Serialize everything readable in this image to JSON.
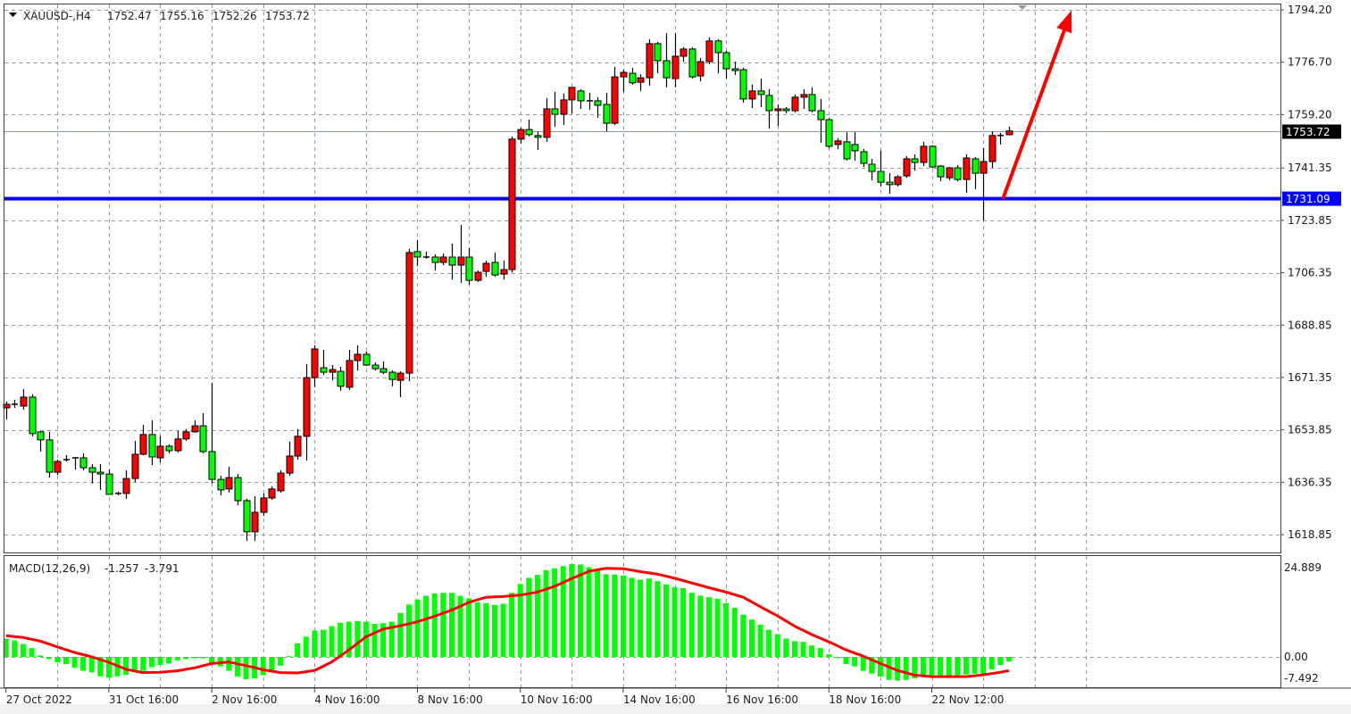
{
  "header": {
    "symbol": "XAUUSD-,H4",
    "open": "1752.47",
    "high": "1755.16",
    "low": "1752.26",
    "close": "1753.72"
  },
  "macd_header": {
    "label": "MACD(12,26,9)",
    "main": "-1.257",
    "signal": "-3.791"
  },
  "colors": {
    "bull_candle": "#ff0000",
    "bear_candle": "#00ff00",
    "level_line": "#0000ff",
    "arrow": "#ff0000",
    "macd_histogram": "#00ff00",
    "macd_signal": "#ff0000",
    "grid": "#8d99aa"
  },
  "chart_data": [
    {
      "type": "candlestick",
      "ylim": [
        1618.85,
        1794.2
      ],
      "grid": true,
      "price_ticks": [
        "1794.20",
        "1776.70",
        "1759.20",
        "1741.35",
        "1723.85",
        "1706.35",
        "1688.85",
        "1671.35",
        "1653.85",
        "1636.35",
        "1618.85"
      ],
      "current_price": "1753.72",
      "horizontal_level": "1731.09",
      "time_labels": [
        {
          "label": "27 Oct 2022",
          "bar": 1
        },
        {
          "label": "31 Oct 16:00",
          "bar": 13
        },
        {
          "label": "2 Nov 16:00",
          "bar": 25
        },
        {
          "label": "4 Nov 16:00",
          "bar": 37
        },
        {
          "label": "8 Nov 16:00",
          "bar": 49
        },
        {
          "label": "10 Nov 16:00",
          "bar": 61
        },
        {
          "label": "14 Nov 16:00",
          "bar": 73
        },
        {
          "label": "16 Nov 16:00",
          "bar": 85
        },
        {
          "label": "18 Nov 16:00",
          "bar": 97
        },
        {
          "label": "22 Nov 12:00",
          "bar": 109
        }
      ],
      "arrow_annotation": {
        "from": {
          "bar": 117.3,
          "price": 1731.09
        },
        "to": {
          "bar": 125.3,
          "price": 1794.0
        }
      },
      "ohlc": [
        [
          1661.2,
          1663.3,
          1657.3,
          1662.4
        ],
        [
          1662.4,
          1663.9,
          1661.2,
          1662.4
        ],
        [
          1661.8,
          1667.5,
          1660.6,
          1664.8
        ],
        [
          1664.8,
          1665.7,
          1651.7,
          1652.6
        ],
        [
          1653.2,
          1653.5,
          1646.6,
          1650.5
        ],
        [
          1650.5,
          1653.2,
          1637.9,
          1639.7
        ],
        [
          1639.7,
          1643.9,
          1638.8,
          1643.3
        ],
        [
          1643.9,
          1645.4,
          1643.3,
          1643.9
        ],
        [
          1644.5,
          1644.8,
          1640.6,
          1644.5
        ],
        [
          1644.5,
          1646.0,
          1640.3,
          1641.2
        ],
        [
          1641.2,
          1642.4,
          1635.9,
          1639.7
        ],
        [
          1639.7,
          1642.4,
          1633.8,
          1639.1
        ],
        [
          1639.1,
          1640.6,
          1632.3,
          1632.3
        ],
        [
          1632.6,
          1633.2,
          1632.0,
          1632.6
        ],
        [
          1632.6,
          1640.3,
          1630.8,
          1637.6
        ],
        [
          1637.6,
          1650.2,
          1636.4,
          1645.7
        ],
        [
          1645.7,
          1655.5,
          1645.4,
          1652.3
        ],
        [
          1652.3,
          1657.0,
          1642.1,
          1644.8
        ],
        [
          1644.5,
          1651.7,
          1643.0,
          1648.4
        ],
        [
          1648.4,
          1649.0,
          1646.0,
          1646.9
        ],
        [
          1646.9,
          1653.5,
          1646.3,
          1650.8
        ],
        [
          1650.8,
          1654.1,
          1650.2,
          1653.2
        ],
        [
          1653.2,
          1657.0,
          1652.9,
          1655.2
        ],
        [
          1655.2,
          1659.4,
          1646.0,
          1646.6
        ],
        [
          1646.6,
          1669.6,
          1635.9,
          1637.3
        ],
        [
          1637.3,
          1638.5,
          1632.0,
          1633.8
        ],
        [
          1634.1,
          1641.5,
          1632.9,
          1637.9
        ],
        [
          1637.9,
          1639.1,
          1628.7,
          1630.2
        ],
        [
          1630.2,
          1630.8,
          1616.8,
          1619.8
        ],
        [
          1619.8,
          1631.7,
          1616.8,
          1626.3
        ],
        [
          1626.3,
          1632.6,
          1625.1,
          1631.1
        ],
        [
          1631.1,
          1635.0,
          1630.5,
          1634.1
        ],
        [
          1633.5,
          1640.3,
          1632.9,
          1639.4
        ],
        [
          1639.4,
          1649.9,
          1638.5,
          1645.1
        ],
        [
          1645.1,
          1654.1,
          1643.9,
          1651.7
        ],
        [
          1651.7,
          1675.8,
          1643.6,
          1671.3
        ],
        [
          1671.3,
          1682.1,
          1668.1,
          1680.9
        ],
        [
          1674.6,
          1680.6,
          1672.2,
          1673.1
        ],
        [
          1673.1,
          1675.5,
          1670.4,
          1674.0
        ],
        [
          1673.4,
          1674.9,
          1666.9,
          1668.4
        ],
        [
          1668.1,
          1680.6,
          1667.2,
          1677.0
        ],
        [
          1677.0,
          1682.1,
          1673.7,
          1679.1
        ],
        [
          1679.1,
          1680.0,
          1675.2,
          1675.5
        ],
        [
          1675.5,
          1676.4,
          1673.7,
          1674.3
        ],
        [
          1674.3,
          1676.7,
          1672.5,
          1673.1
        ],
        [
          1673.1,
          1673.7,
          1668.4,
          1670.7
        ],
        [
          1670.4,
          1673.4,
          1664.8,
          1672.8
        ],
        [
          1672.8,
          1714.3,
          1670.1,
          1713.1
        ],
        [
          1713.4,
          1717.3,
          1708.6,
          1711.6
        ],
        [
          1711.6,
          1713.4,
          1711.0,
          1711.6
        ],
        [
          1711.6,
          1712.5,
          1707.1,
          1709.8
        ],
        [
          1709.8,
          1712.8,
          1708.9,
          1711.6
        ],
        [
          1711.6,
          1716.1,
          1704.1,
          1708.9
        ],
        [
          1708.9,
          1722.3,
          1703.0,
          1711.6
        ],
        [
          1711.6,
          1714.6,
          1702.4,
          1703.8
        ],
        [
          1703.8,
          1707.1,
          1703.3,
          1706.5
        ],
        [
          1706.8,
          1710.4,
          1705.0,
          1709.5
        ],
        [
          1709.8,
          1713.1,
          1705.0,
          1705.6
        ],
        [
          1705.9,
          1710.4,
          1704.1,
          1707.4
        ],
        [
          1707.4,
          1751.9,
          1706.5,
          1751.0
        ],
        [
          1751.0,
          1754.8,
          1749.5,
          1754.2
        ],
        [
          1754.2,
          1757.5,
          1751.9,
          1752.5
        ],
        [
          1752.2,
          1753.6,
          1747.4,
          1751.6
        ],
        [
          1751.6,
          1764.7,
          1750.1,
          1761.1
        ],
        [
          1761.1,
          1766.8,
          1755.1,
          1759.3
        ],
        [
          1759.3,
          1766.2,
          1755.7,
          1764.1
        ],
        [
          1764.1,
          1768.3,
          1759.6,
          1768.3
        ],
        [
          1767.1,
          1767.7,
          1761.1,
          1763.8
        ],
        [
          1763.8,
          1766.5,
          1760.8,
          1763.8
        ],
        [
          1763.8,
          1765.0,
          1758.1,
          1762.3
        ],
        [
          1762.6,
          1766.5,
          1753.6,
          1756.3
        ],
        [
          1756.3,
          1775.1,
          1755.7,
          1771.8
        ],
        [
          1771.8,
          1774.2,
          1766.8,
          1773.3
        ],
        [
          1773.0,
          1774.8,
          1769.2,
          1769.8
        ],
        [
          1770.0,
          1772.7,
          1767.1,
          1771.5
        ],
        [
          1771.5,
          1784.4,
          1768.9,
          1782.9
        ],
        [
          1782.9,
          1783.5,
          1773.0,
          1777.2
        ],
        [
          1777.2,
          1786.4,
          1768.3,
          1771.5
        ],
        [
          1771.2,
          1786.4,
          1768.3,
          1778.7
        ],
        [
          1778.7,
          1781.7,
          1776.9,
          1781.1
        ],
        [
          1781.1,
          1781.7,
          1771.2,
          1771.8
        ],
        [
          1772.1,
          1778.1,
          1770.3,
          1776.9
        ],
        [
          1776.9,
          1785.0,
          1776.0,
          1783.8
        ],
        [
          1783.8,
          1784.4,
          1773.0,
          1779.9
        ],
        [
          1779.9,
          1780.5,
          1771.2,
          1774.5
        ],
        [
          1774.5,
          1776.9,
          1772.4,
          1773.9
        ],
        [
          1774.2,
          1774.8,
          1763.2,
          1764.4
        ],
        [
          1764.4,
          1769.2,
          1761.4,
          1767.1
        ],
        [
          1767.1,
          1771.2,
          1761.7,
          1765.9
        ],
        [
          1765.6,
          1767.7,
          1754.5,
          1760.5
        ],
        [
          1760.5,
          1762.6,
          1755.4,
          1761.1
        ],
        [
          1761.1,
          1761.7,
          1759.6,
          1760.5
        ],
        [
          1760.5,
          1765.9,
          1759.9,
          1765.0
        ],
        [
          1765.0,
          1767.7,
          1761.1,
          1765.9
        ],
        [
          1765.9,
          1768.3,
          1759.9,
          1760.5
        ],
        [
          1760.5,
          1764.4,
          1749.8,
          1757.5
        ],
        [
          1757.5,
          1758.1,
          1747.9,
          1748.6
        ],
        [
          1749.2,
          1751.3,
          1747.7,
          1750.4
        ],
        [
          1750.1,
          1753.3,
          1743.8,
          1744.4
        ],
        [
          1749.2,
          1753.3,
          1743.8,
          1747.1
        ],
        [
          1746.8,
          1747.7,
          1741.7,
          1742.9
        ],
        [
          1742.6,
          1744.4,
          1737.2,
          1740.2
        ],
        [
          1740.2,
          1747.1,
          1735.2,
          1736.6
        ],
        [
          1736.6,
          1739.6,
          1732.8,
          1735.8
        ],
        [
          1735.8,
          1739.0,
          1735.2,
          1738.4
        ],
        [
          1738.7,
          1745.3,
          1738.1,
          1744.4
        ],
        [
          1744.4,
          1745.9,
          1740.5,
          1743.2
        ],
        [
          1743.2,
          1750.1,
          1742.0,
          1748.6
        ],
        [
          1748.6,
          1748.9,
          1741.4,
          1741.7
        ],
        [
          1742.0,
          1742.3,
          1736.9,
          1738.4
        ],
        [
          1738.1,
          1741.7,
          1737.2,
          1741.4
        ],
        [
          1741.4,
          1742.3,
          1736.9,
          1737.5
        ],
        [
          1737.5,
          1745.9,
          1733.1,
          1744.7
        ],
        [
          1744.4,
          1745.0,
          1734.3,
          1739.6
        ],
        [
          1739.6,
          1748.0,
          1723.8,
          1743.5
        ],
        [
          1743.5,
          1753.6,
          1741.4,
          1752.2
        ],
        [
          1752.2,
          1753.1,
          1749.2,
          1752.4
        ],
        [
          1752.47,
          1755.16,
          1752.26,
          1753.72
        ]
      ]
    },
    {
      "type": "bar+line",
      "ylim": [
        -7.492,
        24.889
      ],
      "ticks": [
        "24.889",
        "0.00",
        "-7.492"
      ],
      "histogram": [
        5.0,
        4.5,
        3.5,
        2.4,
        0.4,
        -0.6,
        -1.5,
        -2.0,
        -3.0,
        -3.8,
        -4.2,
        -5.3,
        -5.7,
        -5.3,
        -4.9,
        -4.1,
        -3.8,
        -2.8,
        -2.2,
        -1.8,
        -1.0,
        -0.6,
        -0.4,
        -0.4,
        -1.8,
        -2.6,
        -3.8,
        -5.4,
        -6.1,
        -5.9,
        -5.0,
        -3.8,
        -2.4,
        0.2,
        3.7,
        5.5,
        7.2,
        7.4,
        8.4,
        9.3,
        9.6,
        9.8,
        9.6,
        9.0,
        9.2,
        9.6,
        12.0,
        14.3,
        15.7,
        16.7,
        17.3,
        17.5,
        17.5,
        16.7,
        16.0,
        14.9,
        14.7,
        14.2,
        14.5,
        17.5,
        19.9,
        21.6,
        22.4,
        23.7,
        24.2,
        24.8,
        25.4,
        25.2,
        24.5,
        23.8,
        22.6,
        22.5,
        22.2,
        21.6,
        21.1,
        21.4,
        20.7,
        19.8,
        19.1,
        18.8,
        17.5,
        16.7,
        16.3,
        15.9,
        14.7,
        13.4,
        11.5,
        10.2,
        8.8,
        7.4,
        6.2,
        5.0,
        4.3,
        4.1,
        3.1,
        2.4,
        0.7,
        -0.3,
        -2.0,
        -2.6,
        -3.8,
        -4.6,
        -5.4,
        -6.3,
        -6.5,
        -6.3,
        -5.9,
        -5.0,
        -5.0,
        -5.0,
        -5.0,
        -5.0,
        -4.8,
        -4.6,
        -4.6,
        -3.4,
        -2.2,
        -1.257
      ],
      "signal": [
        5.8,
        5.55,
        5.3,
        4.8,
        4.3,
        3.5,
        2.7,
        1.95,
        1.2,
        0.6,
        0,
        -0.75,
        -1.5,
        -2.45,
        -3.4,
        -3.85,
        -4.3,
        -4.25,
        -4.2,
        -4.0,
        -3.8,
        -3.4,
        -3.0,
        -2.4,
        -1.8,
        -1.6,
        -1.4,
        -1.9,
        -2.4,
        -2.95,
        -3.5,
        -3.9,
        -4.3,
        -4.35,
        -4.4,
        -4.05,
        -3.7,
        -2.55,
        -1.4,
        0.25,
        1.9,
        3.7,
        5.5,
        6.55,
        7.6,
        8.05,
        8.5,
        9.05,
        9.6,
        10.35,
        11.1,
        11.95,
        12.8,
        13.85,
        14.9,
        15.6,
        16.3,
        16.4,
        16.5,
        16.7,
        16.9,
        17.3,
        17.7,
        18.5,
        19.3,
        20.35,
        21.4,
        22.4,
        23.4,
        23.8,
        24.2,
        24.15,
        24.1,
        23.7,
        23.3,
        22.95,
        22.6,
        22.05,
        21.5,
        20.85,
        20.2,
        19.55,
        18.9,
        18.3,
        17.7,
        17.0,
        16.3,
        15.0,
        13.7,
        12.45,
        11.2,
        9.8,
        8.4,
        7.25,
        6.1,
        5.1,
        4.1,
        3.0,
        1.9,
        1.05,
        0.2,
        -0.8,
        -1.8,
        -2.75,
        -3.7,
        -4.35,
        -5.0,
        -5.2,
        -5.4,
        -5.4,
        -5.4,
        -5.4,
        -5.4,
        -5.15,
        -4.9,
        -4.55,
        -4.2,
        -3.791
      ]
    }
  ]
}
